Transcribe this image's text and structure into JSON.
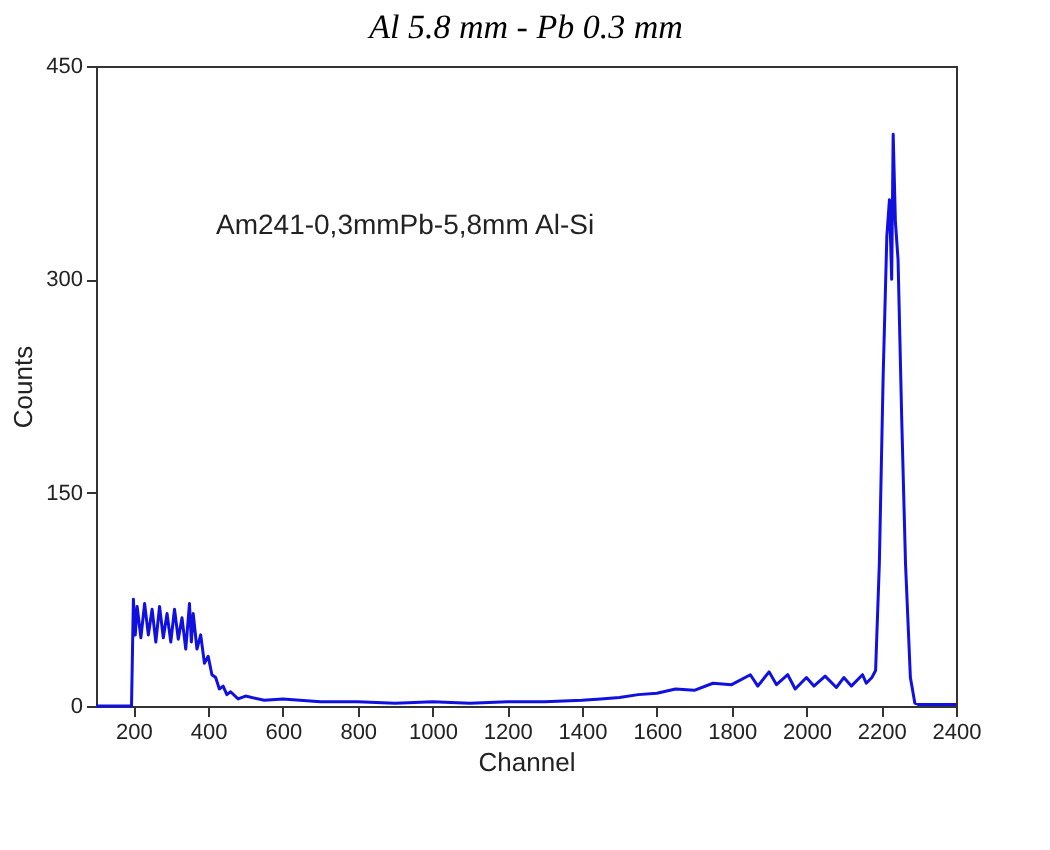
{
  "chart_data": {
    "type": "line",
    "title": "Al 5.8 mm - Pb 0.3 mm",
    "xlabel": "Channel",
    "ylabel": "Counts",
    "annotations": [
      "Am241-0,3mmPb-5,8mm Al-Si"
    ],
    "xlim": [
      100,
      2400
    ],
    "xticks": [
      200,
      400,
      600,
      800,
      1000,
      1200,
      1400,
      1600,
      1800,
      2000,
      2200,
      2400
    ],
    "ylim": [
      0,
      450
    ],
    "yticks": [
      0,
      150,
      300,
      450
    ],
    "grid": false,
    "marker": "none",
    "line_style": "solid",
    "x": [
      100,
      150,
      195,
      200,
      205,
      210,
      220,
      230,
      240,
      250,
      260,
      270,
      280,
      290,
      300,
      310,
      320,
      330,
      340,
      350,
      355,
      360,
      370,
      380,
      390,
      400,
      410,
      420,
      430,
      440,
      450,
      460,
      480,
      500,
      550,
      600,
      700,
      800,
      900,
      1000,
      1100,
      1200,
      1300,
      1400,
      1450,
      1500,
      1550,
      1600,
      1650,
      1700,
      1750,
      1800,
      1850,
      1870,
      1900,
      1920,
      1950,
      1970,
      2000,
      2020,
      2050,
      2080,
      2100,
      2120,
      2150,
      2160,
      2175,
      2185,
      2195,
      2205,
      2215,
      2222,
      2228,
      2232,
      2238,
      2245,
      2255,
      2265,
      2278,
      2290,
      2300,
      2350,
      2400
    ],
    "series": [
      {
        "color": "#1010e0",
        "values": [
          0,
          0,
          0,
          75,
          50,
          70,
          48,
          72,
          50,
          68,
          45,
          70,
          48,
          65,
          45,
          68,
          47,
          62,
          40,
          72,
          45,
          65,
          40,
          50,
          30,
          35,
          22,
          20,
          12,
          14,
          8,
          10,
          5,
          7,
          4,
          5,
          3,
          3,
          2,
          3,
          2,
          3,
          3,
          4,
          5,
          6,
          8,
          9,
          12,
          11,
          16,
          15,
          22,
          14,
          24,
          15,
          22,
          12,
          20,
          14,
          21,
          13,
          20,
          14,
          22,
          16,
          20,
          25,
          100,
          230,
          330,
          356,
          300,
          402,
          340,
          314,
          200,
          100,
          20,
          2,
          1,
          1,
          1
        ]
      }
    ]
  }
}
